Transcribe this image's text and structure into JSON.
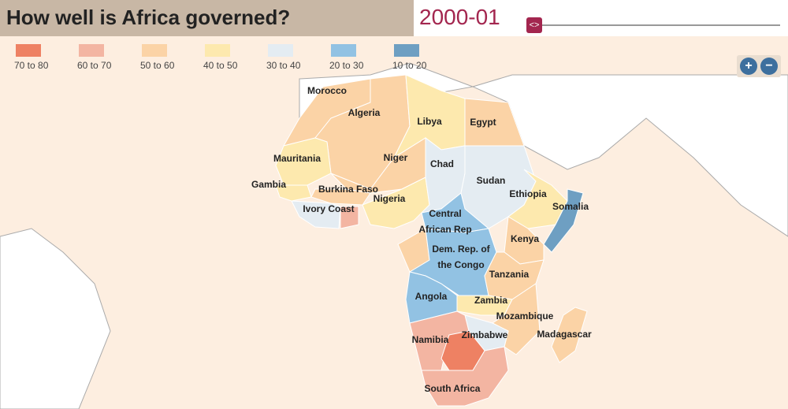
{
  "header": {
    "title": "How well is Africa governed?",
    "period": "2000-01"
  },
  "legend": [
    {
      "label": "70 to 80",
      "color": "#ee8163"
    },
    {
      "label": "60 to 70",
      "color": "#f3b5a2"
    },
    {
      "label": "50 to 60",
      "color": "#fbd3a6"
    },
    {
      "label": "40 to 50",
      "color": "#fde9ae"
    },
    {
      "label": "30 to 40",
      "color": "#e4ecf2"
    },
    {
      "label": "20 to 30",
      "color": "#92c2e3"
    },
    {
      "label": "10 to 20",
      "color": "#6e9fc2"
    }
  ],
  "countries": [
    {
      "label": [
        "Morocco"
      ],
      "color": "#fbd3a6"
    },
    {
      "label": [
        "Algeria"
      ],
      "color": "#fbd3a6"
    },
    {
      "label": [
        "Libya"
      ],
      "color": "#fde9ae"
    },
    {
      "label": [
        "Egypt"
      ],
      "color": "#fbd3a6"
    },
    {
      "label": [
        "Mauritania"
      ],
      "color": "#fde9ae"
    },
    {
      "label": [
        "Niger"
      ],
      "color": "#fbd3a6"
    },
    {
      "label": [
        "Burkina Faso"
      ],
      "color": "#fbd3a6"
    },
    {
      "label": [
        "Gambia"
      ],
      "color": "#fde9ae"
    },
    {
      "label": [
        "Ivory Coast"
      ],
      "color": "#e4ecf2"
    },
    {
      "label": [
        "Nigeria"
      ],
      "color": "#fde9ae"
    },
    {
      "label": [
        "Chad"
      ],
      "color": "#e4ecf2"
    },
    {
      "label": [
        "Sudan"
      ],
      "color": "#e4ecf2"
    },
    {
      "label": [
        "Ethiopia"
      ],
      "color": "#fde9ae"
    },
    {
      "label": [
        "Somalia"
      ],
      "color": "#6e9fc2"
    },
    {
      "label": [
        "Central",
        "African Rep"
      ],
      "color": "#92c2e3"
    },
    {
      "label": [
        "Dem. Rep. of",
        "the Congo"
      ],
      "color": "#92c2e3"
    },
    {
      "label": [
        "Kenya"
      ],
      "color": "#fbd3a6"
    },
    {
      "label": [
        "Tanzania"
      ],
      "color": "#fbd3a6"
    },
    {
      "label": [
        "Angola"
      ],
      "color": "#92c2e3"
    },
    {
      "label": [
        "Zambia"
      ],
      "color": "#fde9ae"
    },
    {
      "label": [
        "Mozambique"
      ],
      "color": "#fbd3a6"
    },
    {
      "label": [
        "Madagascar"
      ],
      "color": "#fbd3a6"
    },
    {
      "label": [
        "Zimbabwe"
      ],
      "color": "#e4ecf2"
    },
    {
      "label": [
        "Namibia"
      ],
      "color": "#f3b5a2"
    },
    {
      "label": [
        "South Africa"
      ],
      "color": "#f3b5a2"
    }
  ]
}
